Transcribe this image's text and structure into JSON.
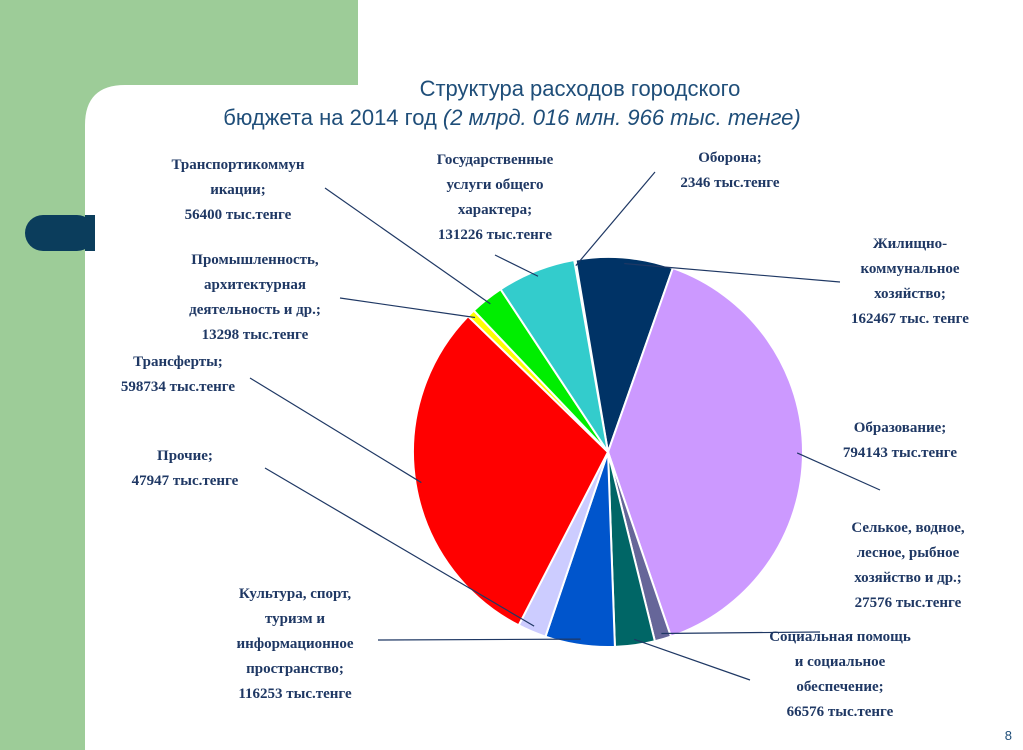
{
  "chart_data": {
    "type": "pie",
    "title": "Структура расходов городского",
    "title_line2": "бюджета на 2014 год",
    "subtitle": "(2 млрд. 016 млн. 966 тыс. тенге)",
    "categories": [
      "Оборона;",
      "Жилищно-\nкоммунальное\nхозяйство;",
      "Образование;",
      "Селькое, водное,\nлесное, рыбное\nхозяйство и др.;",
      "Социальная помощь\nи социальное\nобеспечение;",
      "Культура, спорт,\nтуризм и\nинформационное\nпространство;",
      "Прочие;",
      "Трансферты;",
      "Промышленность,\nархитектурная\nдеятельность и др.;",
      "Транспортикоммун\nикации;",
      "Государственные\nуслуги общего\nхарактера;"
    ],
    "values": [
      2346,
      162467,
      794143,
      27576,
      66576,
      116253,
      47947,
      598734,
      13298,
      56400,
      131226
    ],
    "value_labels": [
      "2346 тыс.тенге",
      "162467 тыс. тенге",
      "794143 тыс.тенге",
      "27576 тыс.тенге",
      "66576 тыс.тенге",
      "116253 тыс.тенге",
      "47947 тыс.тенге",
      "598734 тыс.тенге",
      "13298 тыс.тенге",
      "56400 тыс.тенге",
      "131226 тыс.тенге"
    ],
    "colors": [
      "#f2f2f2",
      "#003366",
      "#cc99ff",
      "#666699",
      "#006666",
      "#0055cc",
      "#ccccff",
      "#ff0000",
      "#ffff00",
      "#00ee00",
      "#33cccc"
    ],
    "page_number": "8"
  }
}
